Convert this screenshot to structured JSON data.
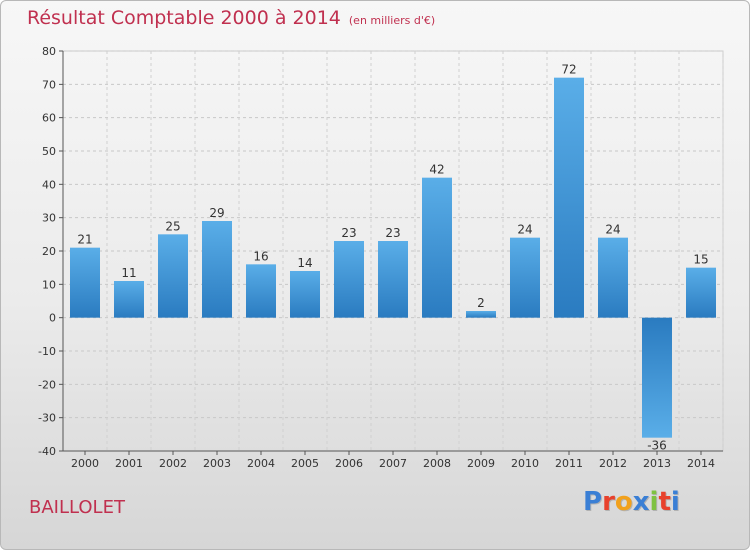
{
  "title": "Résultat Comptable 2000 à 2014",
  "subtitle": "(en milliers d'€)",
  "commune": "BAILLOLET",
  "logo": {
    "text": "Proxiti",
    "letter_colors": [
      "#3a7fd5",
      "#e8412c",
      "#f1a11d",
      "#3a7fd5",
      "#7fc241",
      "#e8412c",
      "#3a7fd5"
    ]
  },
  "chart_data": {
    "type": "bar",
    "categories": [
      "2000",
      "2001",
      "2002",
      "2003",
      "2004",
      "2005",
      "2006",
      "2007",
      "2008",
      "2009",
      "2010",
      "2011",
      "2012",
      "2013",
      "2014"
    ],
    "values": [
      21,
      11,
      25,
      29,
      16,
      14,
      23,
      23,
      42,
      2,
      24,
      72,
      24,
      -36,
      15
    ],
    "ylim": [
      -40,
      80
    ],
    "yticks": [
      -40,
      -30,
      -20,
      -10,
      0,
      10,
      20,
      30,
      40,
      50,
      60,
      70,
      80
    ],
    "grid": true,
    "bar_color_light": "#5aaee8",
    "bar_color_dark": "#2a7bc0"
  }
}
